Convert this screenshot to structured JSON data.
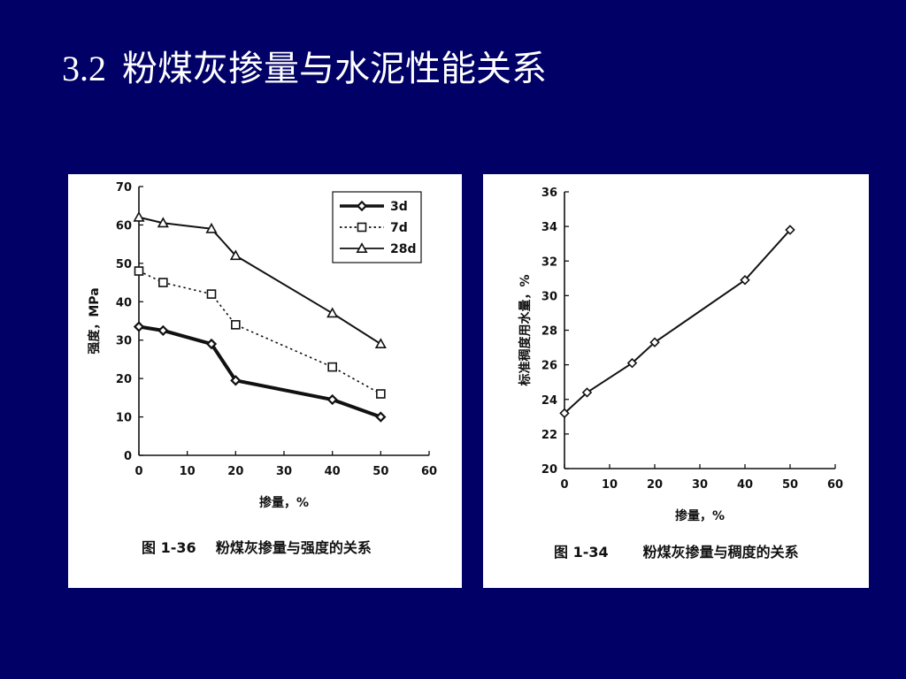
{
  "slide": {
    "number": "3.2",
    "title": "粉煤灰掺量与水泥性能关系"
  },
  "colors": {
    "background": "#000066",
    "title": "#ffffff",
    "panel": "#ffffff",
    "ink": "#111111"
  },
  "chart_data": [
    {
      "type": "line",
      "caption": "图 1-36    粉煤灰掺量与强度的关系",
      "xlabel": "掺量，%",
      "ylabel": "强度，MPa",
      "xlim": [
        0,
        60
      ],
      "ylim": [
        0,
        70
      ],
      "xticks": [
        0,
        10,
        20,
        30,
        40,
        50,
        60
      ],
      "yticks": [
        0,
        10,
        20,
        30,
        40,
        50,
        60,
        70
      ],
      "grid": false,
      "legend_position": "top-right",
      "series": [
        {
          "name": "3d",
          "marker": "diamond",
          "style": "solid-thick",
          "x": [
            0,
            5,
            15,
            20,
            40,
            50
          ],
          "y": [
            33.5,
            32.5,
            29,
            19.5,
            14.5,
            10
          ]
        },
        {
          "name": "7d",
          "marker": "square",
          "style": "dotted",
          "x": [
            0,
            5,
            15,
            20,
            40,
            50
          ],
          "y": [
            48,
            45,
            42,
            34,
            23,
            16
          ]
        },
        {
          "name": "28d",
          "marker": "triangle",
          "style": "solid",
          "x": [
            0,
            5,
            15,
            20,
            40,
            50
          ],
          "y": [
            62,
            60.5,
            59,
            52,
            37,
            29
          ]
        }
      ]
    },
    {
      "type": "line",
      "caption": "图 1-34       粉煤灰掺量与稠度的关系",
      "xlabel": "掺量，%",
      "ylabel": "标准稠度用水量，%",
      "xlim": [
        0,
        60
      ],
      "ylim": [
        20,
        36
      ],
      "xticks": [
        0,
        10,
        20,
        30,
        40,
        50,
        60
      ],
      "yticks": [
        20,
        22,
        24,
        26,
        28,
        30,
        32,
        34,
        36
      ],
      "grid": false,
      "series": [
        {
          "marker": "diamond",
          "style": "solid",
          "x": [
            0,
            5,
            15,
            20,
            40,
            50
          ],
          "y": [
            23.2,
            24.4,
            26.1,
            27.3,
            30.9,
            33.8
          ]
        }
      ]
    }
  ]
}
